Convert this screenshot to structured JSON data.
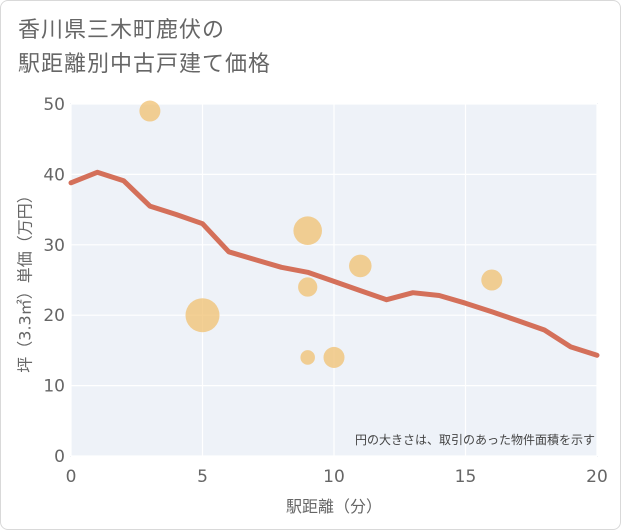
{
  "title_lines": [
    "香川県三木町鹿伏の",
    "駅距離別中古戸建て価格"
  ],
  "colors": {
    "line": "#d4705a",
    "bubble": "#f0c070",
    "plot_bg": "#eef2f8",
    "grid": "#ffffff"
  },
  "chart_data": {
    "type": "scatter",
    "xlabel": "駅距離（分）",
    "ylabel": "坪（3.3㎡）単価（万円）",
    "xlim": [
      0,
      20
    ],
    "ylim": [
      0,
      50
    ],
    "xticks": [
      0,
      5,
      10,
      15,
      20
    ],
    "yticks": [
      0,
      10,
      20,
      30,
      40,
      50
    ],
    "grid": true,
    "annotation": "円の大きさは、取引のあった物件面積を示す",
    "series": [
      {
        "type": "bubble",
        "points": [
          {
            "x": 3,
            "y": 49,
            "size": 2
          },
          {
            "x": 5,
            "y": 20,
            "size": 8
          },
          {
            "x": 9,
            "y": 32,
            "size": 5
          },
          {
            "x": 9,
            "y": 24,
            "size": 1.5
          },
          {
            "x": 9,
            "y": 14,
            "size": 0.5
          },
          {
            "x": 10,
            "y": 14,
            "size": 2
          },
          {
            "x": 11,
            "y": 27,
            "size": 2.5
          },
          {
            "x": 16,
            "y": 25,
            "size": 2
          }
        ]
      },
      {
        "type": "line",
        "points": [
          {
            "x": 0,
            "y": 38.8
          },
          {
            "x": 1,
            "y": 40.3
          },
          {
            "x": 2,
            "y": 39.1
          },
          {
            "x": 3,
            "y": 35.5
          },
          {
            "x": 4,
            "y": 34.3
          },
          {
            "x": 5,
            "y": 33.0
          },
          {
            "x": 6,
            "y": 29.0
          },
          {
            "x": 7,
            "y": 27.9
          },
          {
            "x": 8,
            "y": 26.8
          },
          {
            "x": 9,
            "y": 26.1
          },
          {
            "x": 10,
            "y": 24.8
          },
          {
            "x": 11,
            "y": 23.5
          },
          {
            "x": 12,
            "y": 22.2
          },
          {
            "x": 13,
            "y": 23.2
          },
          {
            "x": 14,
            "y": 22.8
          },
          {
            "x": 15,
            "y": 21.7
          },
          {
            "x": 16,
            "y": 20.5
          },
          {
            "x": 17,
            "y": 19.2
          },
          {
            "x": 18,
            "y": 17.9
          },
          {
            "x": 19,
            "y": 15.5
          },
          {
            "x": 20,
            "y": 14.3
          }
        ]
      }
    ]
  }
}
